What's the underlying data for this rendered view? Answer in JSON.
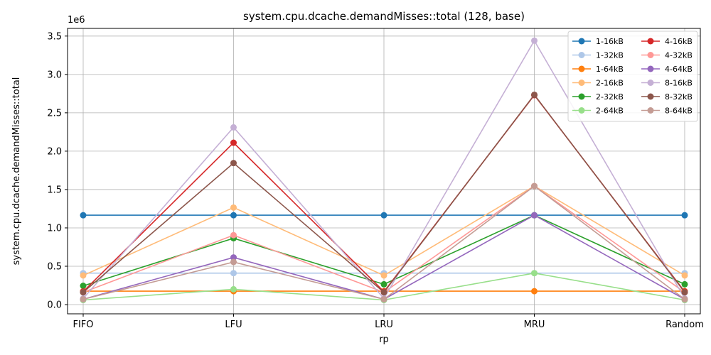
{
  "chart_data": {
    "type": "line",
    "title": "system.cpu.dcache.demandMisses::total (128, base)",
    "xlabel": "rp",
    "ylabel": "system.cpu.dcache.demandMisses::total",
    "offset_label": "1e6",
    "categories": [
      "FIFO",
      "LFU",
      "LRU",
      "MRU",
      "Random"
    ],
    "ylim": [
      -0.12,
      3.6
    ],
    "yticks": [
      0.0,
      0.5,
      1.0,
      1.5,
      2.0,
      2.5,
      3.0,
      3.5
    ],
    "ytick_labels": [
      "0.0",
      "0.5",
      "1.0",
      "1.5",
      "2.0",
      "2.5",
      "3.0",
      "3.5"
    ],
    "y_unit_multiplier": 1000000,
    "grid": true,
    "legend_position": "top-right",
    "series": [
      {
        "name": "1-16kB",
        "color": "#1f77b4",
        "values": [
          1.165,
          1.165,
          1.165,
          1.165,
          1.165
        ]
      },
      {
        "name": "1-32kB",
        "color": "#aec7e8",
        "values": [
          0.41,
          0.41,
          0.41,
          0.41,
          0.41
        ]
      },
      {
        "name": "1-64kB",
        "color": "#ff7f0e",
        "values": [
          0.175,
          0.175,
          0.175,
          0.175,
          0.175
        ]
      },
      {
        "name": "2-16kB",
        "color": "#ffbb78",
        "values": [
          0.38,
          1.265,
          0.38,
          1.545,
          0.38
        ]
      },
      {
        "name": "2-32kB",
        "color": "#2ca02c",
        "values": [
          0.245,
          0.865,
          0.265,
          1.165,
          0.265
        ]
      },
      {
        "name": "2-64kB",
        "color": "#98df8a",
        "values": [
          0.06,
          0.2,
          0.06,
          0.41,
          0.06
        ]
      },
      {
        "name": "4-16kB",
        "color": "#d62728",
        "values": [
          0.17,
          2.11,
          0.17,
          2.73,
          0.17
        ]
      },
      {
        "name": "4-32kB",
        "color": "#ff9896",
        "values": [
          0.16,
          0.905,
          0.16,
          1.545,
          0.16
        ]
      },
      {
        "name": "4-64kB",
        "color": "#9467bd",
        "values": [
          0.07,
          0.615,
          0.07,
          1.165,
          0.07
        ]
      },
      {
        "name": "8-16kB",
        "color": "#c5b0d5",
        "values": [
          0.08,
          2.31,
          0.08,
          3.44,
          0.08
        ]
      },
      {
        "name": "8-32kB",
        "color": "#8c564b",
        "values": [
          0.16,
          1.845,
          0.16,
          2.735,
          0.16
        ]
      },
      {
        "name": "8-64kB",
        "color": "#c49c94",
        "values": [
          0.07,
          0.555,
          0.07,
          1.545,
          0.07
        ]
      }
    ]
  }
}
